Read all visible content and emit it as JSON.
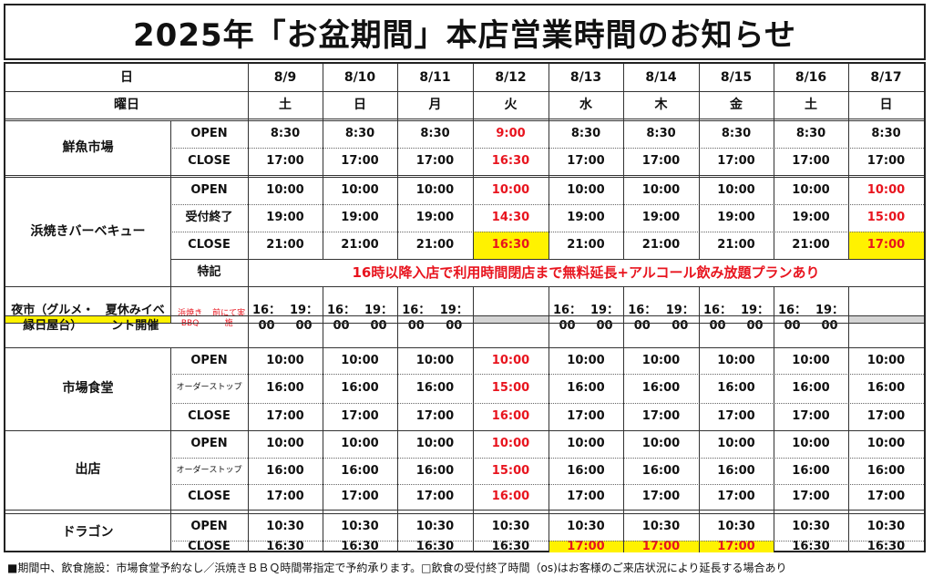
{
  "title": "2025年「お盆期間」本店営業時間のお知らせ",
  "header": {
    "date_label": "日",
    "weekday_label": "曜日",
    "dates": [
      "8/9",
      "8/10",
      "8/11",
      "8/12",
      "8/13",
      "8/14",
      "8/15",
      "8/16",
      "8/17"
    ],
    "weekdays": [
      "土",
      "日",
      "月",
      "火",
      "水",
      "木",
      "金",
      "土",
      "日"
    ]
  },
  "colors": {
    "red_text": "#e8141e",
    "yellow_highlight": "#fff200",
    "gray_closed": "#d4d4d4"
  },
  "sections": [
    {
      "name": "鮮魚市場",
      "rows": [
        {
          "label": "OPEN",
          "cells": [
            {
              "v": "8:30"
            },
            {
              "v": "8:30"
            },
            {
              "v": "8:30"
            },
            {
              "v": "9:00",
              "red": true
            },
            {
              "v": "8:30"
            },
            {
              "v": "8:30"
            },
            {
              "v": "8:30"
            },
            {
              "v": "8:30"
            },
            {
              "v": "8:30"
            }
          ]
        },
        {
          "label": "CLOSE",
          "cells": [
            {
              "v": "17:00"
            },
            {
              "v": "17:00"
            },
            {
              "v": "17:00"
            },
            {
              "v": "16:30",
              "red": true
            },
            {
              "v": "17:00"
            },
            {
              "v": "17:00"
            },
            {
              "v": "17:00"
            },
            {
              "v": "17:00"
            },
            {
              "v": "17:00"
            }
          ]
        }
      ]
    },
    {
      "name": "浜焼きバーベキュー",
      "rows": [
        {
          "label": "OPEN",
          "cells": [
            {
              "v": "10:00"
            },
            {
              "v": "10:00"
            },
            {
              "v": "10:00"
            },
            {
              "v": "10:00",
              "red": true
            },
            {
              "v": "10:00"
            },
            {
              "v": "10:00"
            },
            {
              "v": "10:00"
            },
            {
              "v": "10:00"
            },
            {
              "v": "10:00",
              "red": true
            }
          ]
        },
        {
          "label": "受付終了",
          "cells": [
            {
              "v": "19:00"
            },
            {
              "v": "19:00"
            },
            {
              "v": "19:00"
            },
            {
              "v": "14:30",
              "red": true
            },
            {
              "v": "19:00"
            },
            {
              "v": "19:00"
            },
            {
              "v": "19:00"
            },
            {
              "v": "19:00"
            },
            {
              "v": "15:00",
              "red": true
            }
          ]
        },
        {
          "label": "CLOSE",
          "cells": [
            {
              "v": "21:00"
            },
            {
              "v": "21:00"
            },
            {
              "v": "21:00"
            },
            {
              "v": "16:30",
              "red": true,
              "yellow": true
            },
            {
              "v": "21:00"
            },
            {
              "v": "21:00"
            },
            {
              "v": "21:00"
            },
            {
              "v": "21:00"
            },
            {
              "v": "17:00",
              "red": true,
              "yellow": true
            }
          ]
        }
      ],
      "note_label": "特記",
      "note_text": "16時以降入店で利用時間閉店まで無料延長+アルコール飲み放題プランあり"
    },
    {
      "name_lines": [
        "夜市（グルメ・縁日屋台）",
        "夏休みイベント開催"
      ],
      "sub_lines": [
        "浜焼きBBQ",
        "前にて実施"
      ],
      "cells": [
        {
          "v1": "16：00",
          "v2": "19：00"
        },
        {
          "v1": "16：00",
          "v2": "19：00"
        },
        {
          "v1": "16：00",
          "v2": "19：00"
        },
        {
          "closed": true
        },
        {
          "v1": "16：00",
          "v2": "19：00"
        },
        {
          "v1": "16：00",
          "v2": "19：00"
        },
        {
          "v1": "16：00",
          "v2": "19：00"
        },
        {
          "v1": "16：00",
          "v2": "19：00"
        },
        {
          "closed": true
        }
      ]
    },
    {
      "name": "市場食堂",
      "rows": [
        {
          "label": "OPEN",
          "cells": [
            {
              "v": "10:00"
            },
            {
              "v": "10:00"
            },
            {
              "v": "10:00"
            },
            {
              "v": "10:00",
              "red": true
            },
            {
              "v": "10:00"
            },
            {
              "v": "10:00"
            },
            {
              "v": "10:00"
            },
            {
              "v": "10:00"
            },
            {
              "v": "10:00"
            }
          ]
        },
        {
          "label_lines": [
            "オーダー",
            "ストップ"
          ],
          "cells": [
            {
              "v": "16:00"
            },
            {
              "v": "16:00"
            },
            {
              "v": "16:00"
            },
            {
              "v": "15:00",
              "red": true
            },
            {
              "v": "16:00"
            },
            {
              "v": "16:00"
            },
            {
              "v": "16:00"
            },
            {
              "v": "16:00"
            },
            {
              "v": "16:00"
            }
          ]
        },
        {
          "label": "CLOSE",
          "cells": [
            {
              "v": "17:00"
            },
            {
              "v": "17:00"
            },
            {
              "v": "17:00"
            },
            {
              "v": "16:00",
              "red": true
            },
            {
              "v": "17:00"
            },
            {
              "v": "17:00"
            },
            {
              "v": "17:00"
            },
            {
              "v": "17:00"
            },
            {
              "v": "17:00"
            }
          ]
        }
      ]
    },
    {
      "name": "出店",
      "rows": [
        {
          "label": "OPEN",
          "cells": [
            {
              "v": "10:00"
            },
            {
              "v": "10:00"
            },
            {
              "v": "10:00"
            },
            {
              "v": "10:00",
              "red": true
            },
            {
              "v": "10:00"
            },
            {
              "v": "10:00"
            },
            {
              "v": "10:00"
            },
            {
              "v": "10:00"
            },
            {
              "v": "10:00"
            }
          ]
        },
        {
          "label_lines": [
            "オーダー",
            "ストップ"
          ],
          "cells": [
            {
              "v": "16:00"
            },
            {
              "v": "16:00"
            },
            {
              "v": "16:00"
            },
            {
              "v": "15:00",
              "red": true
            },
            {
              "v": "16:00"
            },
            {
              "v": "16:00"
            },
            {
              "v": "16:00"
            },
            {
              "v": "16:00"
            },
            {
              "v": "16:00"
            }
          ]
        },
        {
          "label": "CLOSE",
          "cells": [
            {
              "v": "17:00"
            },
            {
              "v": "17:00"
            },
            {
              "v": "17:00"
            },
            {
              "v": "16:00",
              "red": true
            },
            {
              "v": "17:00"
            },
            {
              "v": "17:00"
            },
            {
              "v": "17:00"
            },
            {
              "v": "17:00"
            },
            {
              "v": "17:00"
            }
          ]
        }
      ]
    },
    {
      "name": "ドラゴン",
      "rows": [
        {
          "label": "OPEN",
          "cells": [
            {
              "v": "10:30"
            },
            {
              "v": "10:30"
            },
            {
              "v": "10:30"
            },
            {
              "v": "10:30"
            },
            {
              "v": "10:30"
            },
            {
              "v": "10:30"
            },
            {
              "v": "10:30"
            },
            {
              "v": "10:30"
            },
            {
              "v": "10:30"
            }
          ]
        },
        {
          "label": "CLOSE",
          "cells": [
            {
              "v": "16:30"
            },
            {
              "v": "16:30"
            },
            {
              "v": "16:30"
            },
            {
              "v": "16:30"
            },
            {
              "v": "17:00",
              "red": true,
              "yellow": true
            },
            {
              "v": "17:00",
              "red": true,
              "yellow": true
            },
            {
              "v": "17:00",
              "red": true,
              "yellow": true
            },
            {
              "v": "16:30"
            },
            {
              "v": "16:30"
            }
          ]
        }
      ]
    }
  ],
  "footnote": "■期間中、飲食施設：市場食堂予約なし／浜焼きＢＢＱ時間帯指定で予約承ります。□飲食の受付終了時間（os)はお客様のご来店状況により延長する場合あり"
}
